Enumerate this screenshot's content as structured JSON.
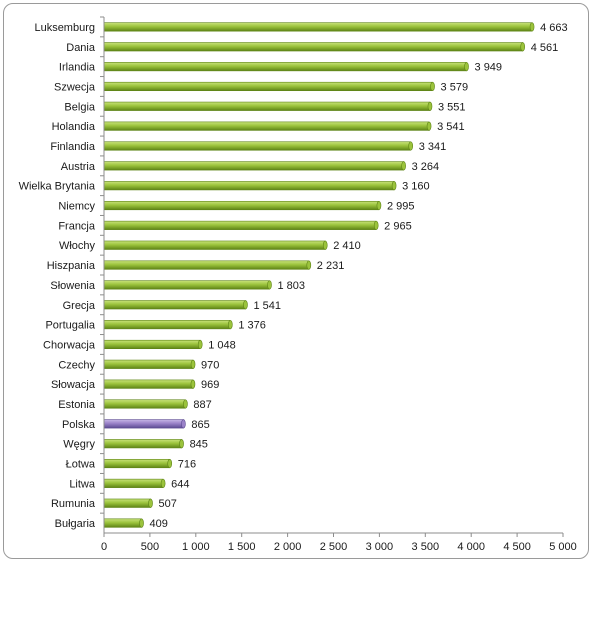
{
  "chart_data": {
    "type": "bar",
    "orientation": "horizontal",
    "categories": [
      "Luksemburg",
      "Dania",
      "Irlandia",
      "Szwecja",
      "Belgia",
      "Holandia",
      "Finlandia",
      "Austria",
      "Wielka Brytania",
      "Niemcy",
      "Francja",
      "Włochy",
      "Hiszpania",
      "Słowenia",
      "Grecja",
      "Portugalia",
      "Chorwacja",
      "Czechy",
      "Słowacja",
      "Estonia",
      "Polska",
      "Węgry",
      "Łotwa",
      "Litwa",
      "Rumunia",
      "Bułgaria"
    ],
    "values": [
      4663,
      4561,
      3949,
      3579,
      3551,
      3541,
      3341,
      3264,
      3160,
      2995,
      2965,
      2410,
      2231,
      1803,
      1541,
      1376,
      1048,
      970,
      969,
      887,
      865,
      845,
      716,
      644,
      507,
      409
    ],
    "value_labels": [
      "4 663",
      "4 561",
      "3 949",
      "3 579",
      "3 551",
      "3 541",
      "3 341",
      "3 264",
      "3 160",
      "2 995",
      "2 965",
      "2 410",
      "2 231",
      "1 803",
      "1 541",
      "1 376",
      "1 048",
      "970",
      "969",
      "887",
      "865",
      "845",
      "716",
      "644",
      "507",
      "409"
    ],
    "xlim": [
      0,
      5000
    ],
    "xticks": [
      0,
      500,
      1000,
      1500,
      2000,
      2500,
      3000,
      3500,
      4000,
      4500,
      5000
    ],
    "xtick_labels": [
      "0",
      "500",
      "1 000",
      "1 500",
      "2 000",
      "2 500",
      "3 000",
      "3 500",
      "4 000",
      "4 500",
      "5 000"
    ],
    "highlight": "Polska",
    "colors": {
      "bar": "#9bc33c",
      "bar_dark": "#5e8416",
      "highlight": "#9a82c8",
      "highlight_dark": "#5b4a91",
      "axis": "#8c8c8c"
    },
    "grid": false,
    "legend": false
  }
}
